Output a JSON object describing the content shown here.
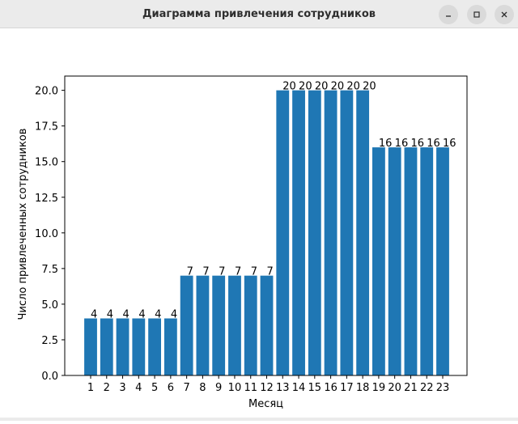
{
  "window": {
    "title": "Диаграмма привлечения сотрудников",
    "buttons": {
      "minimize_icon": "minimize-icon",
      "maximize_icon": "maximize-icon",
      "close_icon": "close-icon"
    }
  },
  "colors": {
    "bar": "#1f77b4",
    "axis": "#000000",
    "titlebar": "#ebebeb",
    "button": "#dadada"
  },
  "chart_data": {
    "type": "bar",
    "title": "",
    "xlabel": "Месяц",
    "ylabel": "Число привлеченных сотрудников",
    "categories": [
      "1",
      "2",
      "3",
      "4",
      "5",
      "6",
      "7",
      "8",
      "9",
      "10",
      "11",
      "12",
      "13",
      "14",
      "15",
      "16",
      "17",
      "18",
      "19",
      "20",
      "21",
      "22",
      "23"
    ],
    "values": [
      4,
      4,
      4,
      4,
      4,
      4,
      7,
      7,
      7,
      7,
      7,
      7,
      20,
      20,
      20,
      20,
      20,
      20,
      16,
      16,
      16,
      16,
      16
    ],
    "data_labels": [
      "4",
      "4",
      "4",
      "4",
      "4",
      "4",
      "7",
      "7",
      "7",
      "7",
      "7",
      "7",
      "20",
      "20",
      "20",
      "20",
      "20",
      "20",
      "16",
      "16",
      "16",
      "16",
      "16"
    ],
    "ylim": [
      0,
      21
    ],
    "yticks": [
      0.0,
      2.5,
      5.0,
      7.5,
      10.0,
      12.5,
      15.0,
      17.5,
      20.0
    ],
    "ytick_labels": [
      "0.0",
      "2.5",
      "5.0",
      "7.5",
      "10.0",
      "12.5",
      "15.0",
      "17.5",
      "20.0"
    ],
    "grid": false,
    "legend": "none"
  }
}
